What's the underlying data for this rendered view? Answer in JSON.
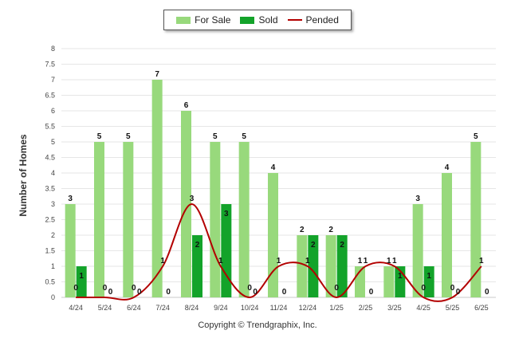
{
  "legend": {
    "for_sale": "For Sale",
    "sold": "Sold",
    "pended": "Pended"
  },
  "colors": {
    "for_sale": "#98d97c",
    "sold": "#13a32a",
    "pended": "#b30000",
    "grid": "#e6e6e6",
    "axis_text": "#444444"
  },
  "copyright": "Copyright © Trendgraphix, Inc.",
  "chart_data": {
    "type": "bar",
    "title": "",
    "xlabel": "",
    "ylabel": "Number of Homes",
    "ylim": [
      0,
      8
    ],
    "y_ticks": [
      "0",
      "0.5",
      "1",
      "1.5",
      "2",
      "2.5",
      "3",
      "3.5",
      "4",
      "4.5",
      "5",
      "5.5",
      "6",
      "6.5",
      "7",
      "7.5",
      "8"
    ],
    "categories": [
      "4/24",
      "5/24",
      "6/24",
      "7/24",
      "8/24",
      "9/24",
      "10/24",
      "11/24",
      "12/24",
      "1/25",
      "2/25",
      "3/25",
      "4/25",
      "5/25",
      "6/25"
    ],
    "grid": true,
    "legend_position": "top-center",
    "series": [
      {
        "name": "For Sale",
        "type": "bar",
        "values": [
          3,
          5,
          5,
          7,
          6,
          5,
          5,
          4,
          2,
          2,
          1,
          1,
          3,
          4,
          5
        ]
      },
      {
        "name": "Sold",
        "type": "bar",
        "values": [
          1,
          0,
          0,
          0,
          2,
          3,
          0,
          0,
          2,
          2,
          0,
          1,
          1,
          0,
          0
        ]
      },
      {
        "name": "Pended",
        "type": "line",
        "values": [
          0,
          0,
          0,
          1,
          3,
          1,
          0,
          1,
          1,
          0,
          1,
          1,
          0,
          0,
          1
        ]
      }
    ]
  }
}
